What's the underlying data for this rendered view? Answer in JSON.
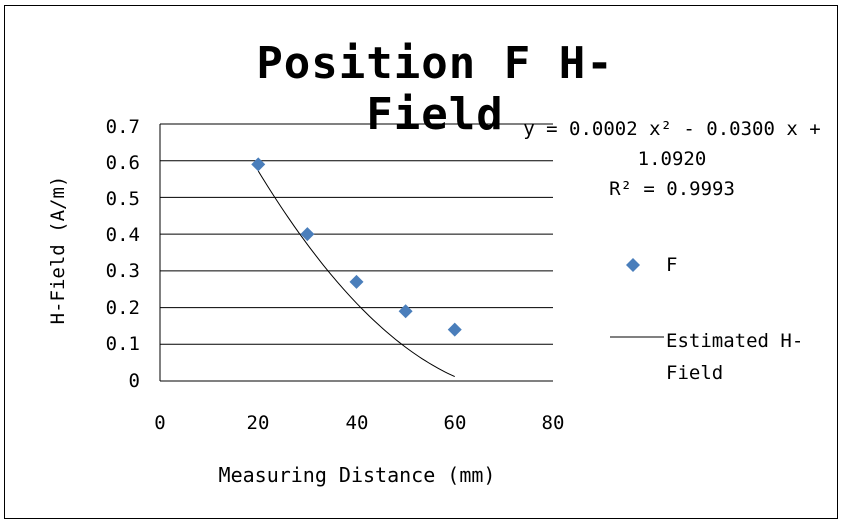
{
  "chart_data": {
    "type": "scatter",
    "title": "Position F H-Field",
    "xlabel": "Measuring Distance (mm)",
    "ylabel": "H-Field (A/m)",
    "xlim": [
      0,
      80
    ],
    "ylim": [
      0,
      0.7
    ],
    "x_ticks": [
      "0",
      "20",
      "40",
      "60",
      "80"
    ],
    "y_ticks": [
      "0.7",
      "0.6",
      "0.5",
      "0.4",
      "0.3",
      "0.2",
      "0.1",
      "0"
    ],
    "grid": "horizontal",
    "legend_position": "right",
    "series": [
      {
        "name": "F",
        "kind": "scatter",
        "marker": "diamond",
        "color": "#4a7ebb",
        "points": [
          {
            "x": 20,
            "y": 0.59
          },
          {
            "x": 30,
            "y": 0.4
          },
          {
            "x": 40,
            "y": 0.27
          },
          {
            "x": 50,
            "y": 0.19
          },
          {
            "x": 60,
            "y": 0.14
          }
        ]
      },
      {
        "name": "Estimated H-Field",
        "kind": "line",
        "color": "#000000",
        "fit": {
          "a": 0.0002,
          "b": -0.03,
          "c": 1.092,
          "x_range": [
            20,
            60
          ]
        }
      }
    ],
    "annotations": {
      "equation_line1": "y = 0.0002 x² - 0.0300 x +",
      "equation_line2": "1.0920",
      "r_squared": "R² = 0.9993"
    },
    "legend": {
      "series_label": "F",
      "line_label_line1": "Estimated H-",
      "line_label_line2": "Field"
    }
  }
}
